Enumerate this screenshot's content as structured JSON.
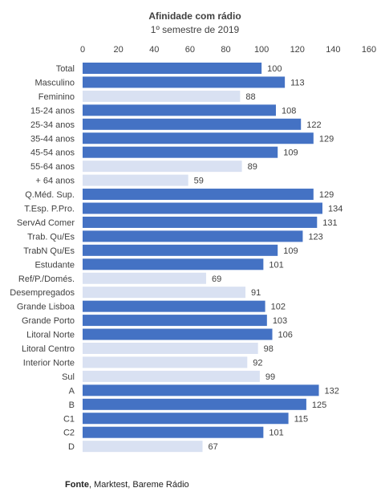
{
  "chart_data": {
    "type": "bar",
    "orientation": "horizontal",
    "title": "Afinidade com rádio",
    "subtitle": "1º semestre de 2019",
    "xlim": [
      0,
      160
    ],
    "xticks": [
      0,
      20,
      40,
      60,
      80,
      100,
      120,
      140,
      160
    ],
    "categories": [
      "Total",
      "Masculino",
      "Feminino",
      "15-24 anos",
      "25-34 anos",
      "35-44 anos",
      "45-54 anos",
      "55-64 anos",
      "+ 64  anos",
      "Q.Méd. Sup.",
      "T.Esp. P.Pro.",
      "ServAd Comer",
      "Trab. Qu/Es",
      "TrabN Qu/Es",
      "Estudante",
      "Ref/P./Domés.",
      "Desempregados",
      "Grande Lisboa",
      "Grande Porto",
      "Litoral Norte",
      "Litoral Centro",
      "Interior Norte",
      "Sul",
      "A",
      "B",
      "C1",
      "C2",
      "D"
    ],
    "values": [
      100,
      113,
      88,
      108,
      122,
      129,
      109,
      89,
      59,
      129,
      134,
      131,
      123,
      109,
      101,
      69,
      91,
      102,
      103,
      106,
      98,
      92,
      99,
      132,
      125,
      115,
      101,
      67
    ],
    "grid": false,
    "legend": "none",
    "colors": {
      "high": "#4472c4",
      "low": "#d9e1f2"
    },
    "threshold": 100
  },
  "source": {
    "label": "Fonte",
    "text": ", Marktest, Bareme Rádio"
  }
}
